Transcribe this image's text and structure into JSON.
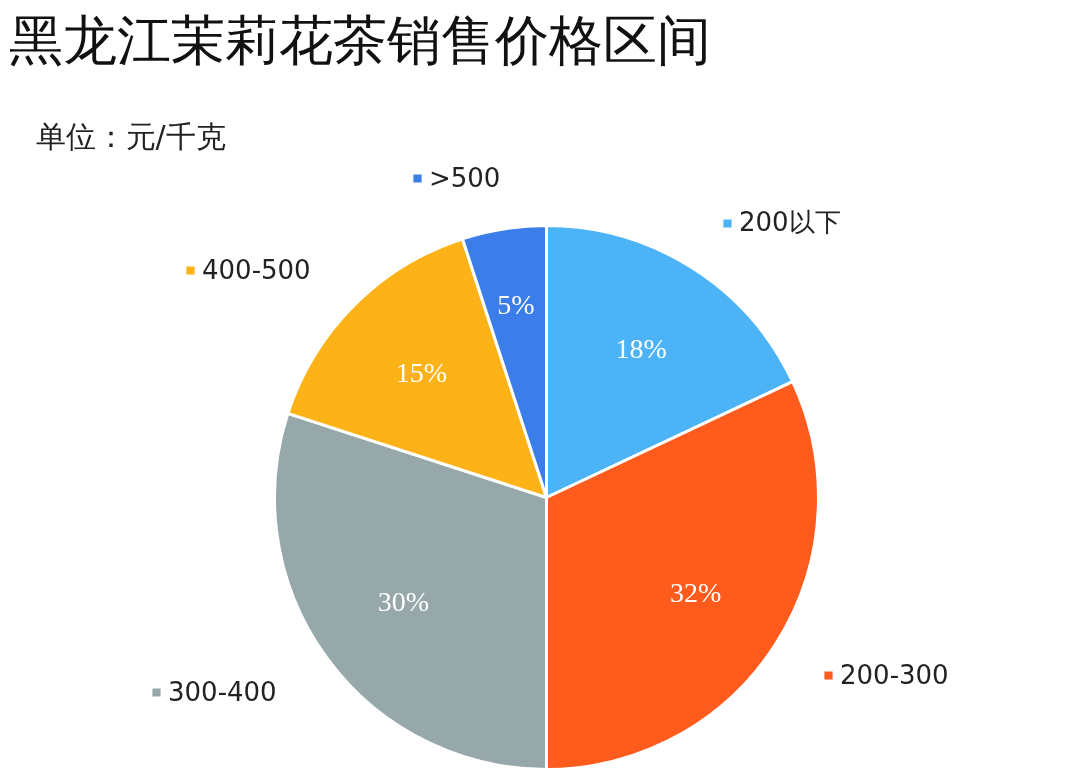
{
  "chart_data": {
    "type": "pie",
    "title": "黑龙江茉莉花茶销售价格区间",
    "annotations": [
      "单位：元/千克"
    ],
    "categories": [
      "200以下",
      "200-300",
      "300-400",
      "400-500",
      ">500"
    ],
    "values": [
      18,
      32,
      30,
      15,
      5
    ],
    "colors": [
      "#4db3f7",
      "#fe5b1c",
      "#97a8ab",
      "#fdb317",
      "#3b7ee9"
    ],
    "value_labels": [
      "18%",
      "32%",
      "30%",
      "15%",
      "5%"
    ],
    "legend": "left"
  }
}
